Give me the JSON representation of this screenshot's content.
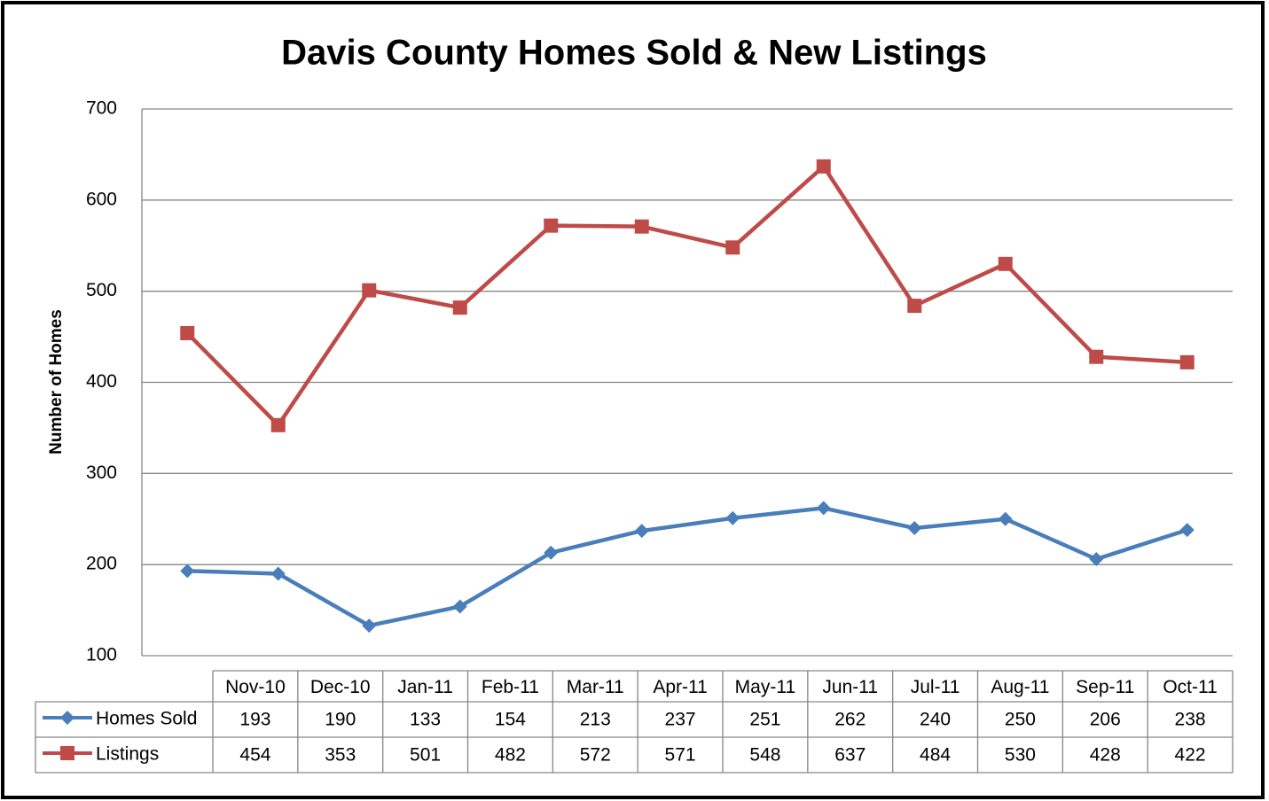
{
  "chart_data": {
    "type": "line",
    "title": "Davis County Homes Sold & New Listings",
    "y_label": "Number of Homes",
    "categories": [
      "Nov-10",
      "Dec-10",
      "Jan-11",
      "Feb-11",
      "Mar-11",
      "Apr-11",
      "May-11",
      "Jun-11",
      "Jul-11",
      "Aug-11",
      "Sep-11",
      "Oct-11"
    ],
    "series": [
      {
        "name": "Homes Sold",
        "color": "#4a7ebb",
        "marker": "diamond",
        "values": [
          193,
          190,
          133,
          154,
          213,
          237,
          251,
          262,
          240,
          250,
          206,
          238
        ]
      },
      {
        "name": "Listings",
        "color": "#be4b48",
        "marker": "square",
        "values": [
          454,
          353,
          501,
          482,
          572,
          571,
          548,
          637,
          484,
          530,
          428,
          422
        ]
      }
    ],
    "ylim": [
      100,
      700
    ],
    "yticks": [
      100,
      200,
      300,
      400,
      500,
      600,
      700
    ],
    "grid": true
  }
}
